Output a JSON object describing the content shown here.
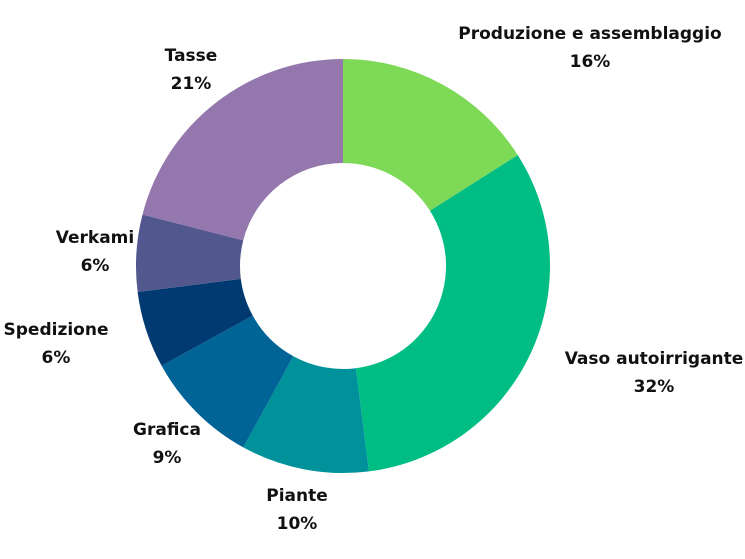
{
  "chart_data": {
    "type": "pie",
    "donut": true,
    "slices": [
      {
        "label": "Produzione e assemblaggio",
        "value": 16,
        "value_label": "16%",
        "color": "#7ED957"
      },
      {
        "label": "Vaso autoirrigante",
        "value": 32,
        "value_label": "32%",
        "color": "#00BD84"
      },
      {
        "label": "Piante",
        "value": 10,
        "value_label": "10%",
        "color": "#00929A"
      },
      {
        "label": "Grafica",
        "value": 9,
        "value_label": "9%",
        "color": "#006497"
      },
      {
        "label": "Spedizione",
        "value": 6,
        "value_label": "6%",
        "color": "#003A70"
      },
      {
        "label": "Verkami",
        "value": 6,
        "value_label": "6%",
        "color": "#52578E"
      },
      {
        "label": "Tasse",
        "value": 21,
        "value_label": "21%",
        "color": "#9478AD"
      }
    ]
  }
}
